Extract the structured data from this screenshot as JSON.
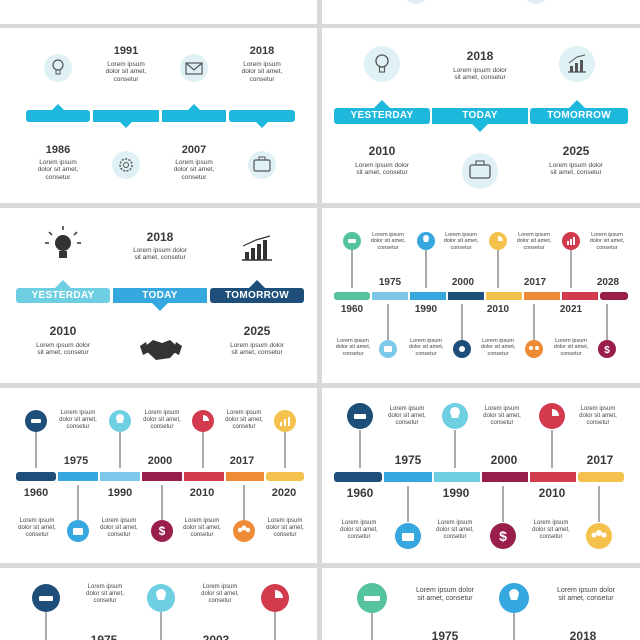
{
  "lorem_short": "Lorem ipsum dolor sit amet, consetur",
  "lorem_line": "Lorem ipsum dolor\nsit amet, consetur",
  "labels": {
    "yesterday": "YESTERDAY",
    "today": "TODAY",
    "tomorrow": "TOMORROW"
  },
  "slide2": {
    "top_years": [
      "1991",
      "2018"
    ],
    "bottom_years": [
      "1986",
      "2007"
    ]
  },
  "slide4": {
    "center_year": "2018",
    "bottom_years": [
      "2010",
      "2025"
    ]
  },
  "slide5": {
    "center_year": "2018",
    "bottom_years": [
      "2010",
      "2025"
    ]
  },
  "slide6": {
    "upper_years": [
      "1975",
      "2000",
      "2017",
      "2028"
    ],
    "lower_years": [
      "1960",
      "1990",
      "2010",
      "2021"
    ]
  },
  "slide7": {
    "upper_years": [
      "1975",
      "2000",
      "2017"
    ],
    "lower_years": [
      "1960",
      "1990",
      "2010",
      "2020"
    ]
  },
  "slide8": {
    "upper_years": [
      "1975",
      "2000",
      "2017"
    ],
    "lower_years": [
      "1960",
      "1990",
      "2010"
    ]
  },
  "slide9": {
    "upper_years": [
      "1975",
      "2003"
    ]
  },
  "slide10": {
    "upper_years": [
      "1975",
      "2018"
    ]
  },
  "colors": {
    "cyan": "#1fb8dd",
    "teal": "#1f5f8a",
    "navy": "#1d3f6b",
    "red": "#d23a4e",
    "yellow": "#f5c14d",
    "orange": "#ef8a36",
    "green": "#55c3a0",
    "maroon": "#9a1e4c",
    "sky": "#4bb7e0",
    "icon_bg": "#dff1f4"
  }
}
